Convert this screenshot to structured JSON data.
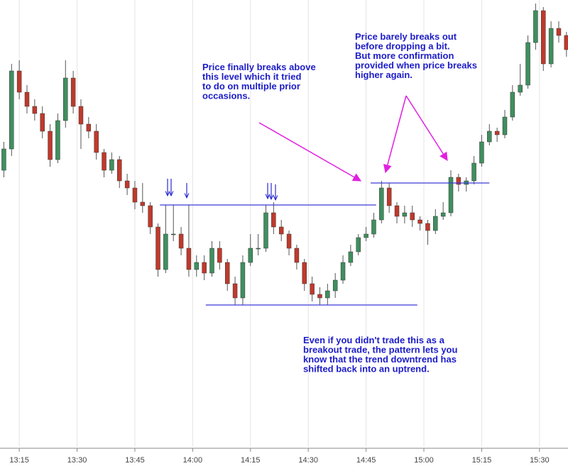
{
  "chart_data": {
    "type": "candlestick",
    "x": [
      -4,
      -2,
      0,
      2,
      4,
      6,
      8,
      10,
      12,
      14,
      16,
      18,
      20,
      22,
      24,
      26,
      28,
      30,
      32,
      34,
      36,
      38,
      40,
      42,
      44,
      46,
      48,
      50,
      52,
      54,
      56,
      58,
      60,
      62,
      64,
      66,
      68,
      70,
      72,
      74,
      76,
      78,
      80,
      82,
      84,
      86,
      88,
      90,
      92,
      94,
      96,
      98,
      100,
      102,
      104,
      106,
      108,
      110,
      112,
      114,
      116,
      118,
      120,
      122,
      124,
      126,
      128,
      130,
      132,
      134,
      136,
      138,
      140,
      142
    ],
    "open": [
      390,
      420,
      530,
      500,
      480,
      470,
      445,
      405,
      460,
      520,
      480,
      455,
      445,
      415,
      390,
      405,
      375,
      365,
      345,
      340,
      310,
      250,
      300,
      300,
      280,
      250,
      260,
      245,
      280,
      260,
      230,
      210,
      260,
      280,
      280,
      330,
      310,
      300,
      280,
      260,
      230,
      215,
      210,
      220,
      235,
      260,
      275,
      295,
      300,
      320,
      365,
      340,
      325,
      330,
      320,
      315,
      305,
      325,
      330,
      380,
      370,
      375,
      400,
      430,
      445,
      440,
      465,
      500,
      510,
      570,
      615,
      540,
      590,
      580
    ],
    "high": [
      430,
      540,
      545,
      510,
      490,
      480,
      455,
      470,
      545,
      530,
      490,
      465,
      455,
      420,
      415,
      410,
      385,
      375,
      372,
      345,
      315,
      341,
      341,
      310,
      341,
      270,
      270,
      290,
      290,
      265,
      240,
      270,
      300,
      300,
      341,
      345,
      320,
      305,
      285,
      265,
      240,
      225,
      230,
      245,
      270,
      285,
      300,
      310,
      330,
      375,
      372,
      345,
      340,
      340,
      325,
      320,
      335,
      345,
      390,
      385,
      380,
      410,
      440,
      455,
      450,
      475,
      510,
      540,
      580,
      625,
      620,
      600,
      600,
      585
    ],
    "low": [
      380,
      410,
      490,
      470,
      460,
      435,
      395,
      400,
      450,
      470,
      420,
      435,
      405,
      380,
      385,
      365,
      355,
      335,
      330,
      300,
      240,
      245,
      290,
      270,
      240,
      240,
      235,
      240,
      250,
      220,
      200,
      200,
      255,
      270,
      275,
      300,
      290,
      270,
      250,
      220,
      205,
      200,
      200,
      210,
      230,
      255,
      270,
      290,
      295,
      315,
      330,
      315,
      315,
      310,
      305,
      285,
      300,
      320,
      325,
      360,
      360,
      370,
      395,
      425,
      430,
      435,
      460,
      495,
      505,
      560,
      530,
      535,
      570,
      550
    ],
    "close": [
      420,
      530,
      500,
      480,
      470,
      445,
      405,
      460,
      520,
      480,
      455,
      445,
      415,
      390,
      405,
      375,
      365,
      345,
      340,
      310,
      250,
      300,
      300,
      280,
      250,
      260,
      245,
      280,
      260,
      230,
      210,
      260,
      280,
      280,
      330,
      310,
      300,
      280,
      260,
      230,
      215,
      210,
      220,
      235,
      260,
      275,
      295,
      300,
      320,
      365,
      340,
      325,
      330,
      320,
      315,
      305,
      325,
      330,
      380,
      370,
      375,
      400,
      430,
      445,
      440,
      465,
      500,
      510,
      570,
      615,
      540,
      590,
      580,
      560
    ],
    "up_color": "#3f8f5f",
    "down_color": "#c0392b",
    "xlim": [
      -5,
      142.4
    ],
    "ylim": [
      0,
      630
    ],
    "xticks": [
      {
        "value": 0,
        "label": "13:15"
      },
      {
        "value": 15,
        "label": "13:30"
      },
      {
        "value": 30,
        "label": "13:45"
      },
      {
        "value": 45,
        "label": "14:00"
      },
      {
        "value": 60,
        "label": "14:15"
      },
      {
        "value": 75,
        "label": "14:30"
      },
      {
        "value": 90,
        "label": "14:45"
      },
      {
        "value": 105,
        "label": "15:00"
      },
      {
        "value": 120,
        "label": "15:15"
      },
      {
        "value": 135,
        "label": "15:30"
      }
    ],
    "grid": true,
    "levels": [
      {
        "y": 341,
        "x": [
          36.5,
          92.6
        ]
      },
      {
        "y": 200,
        "x": [
          48.4,
          103.3
        ]
      },
      {
        "y": 372,
        "x": [
          91.2,
          122
        ]
      }
    ],
    "level_color": "#3b3bd6",
    "annotations": [
      {
        "lines": [
          "Price finally breaks above",
          "this level which it tried",
          "to do on multiple prior",
          "occasions."
        ]
      },
      {
        "lines": [
          "Price barely breaks out",
          "before dropping a bit.",
          "But more confirmation",
          "provided when price breaks",
          "higher again."
        ]
      },
      {
        "lines": [
          "Even if you didn't trade this as a",
          "breakout trade, the pattern lets you",
          "know that the trend downtrend has",
          "shifted back into an uptrend."
        ]
      }
    ]
  }
}
